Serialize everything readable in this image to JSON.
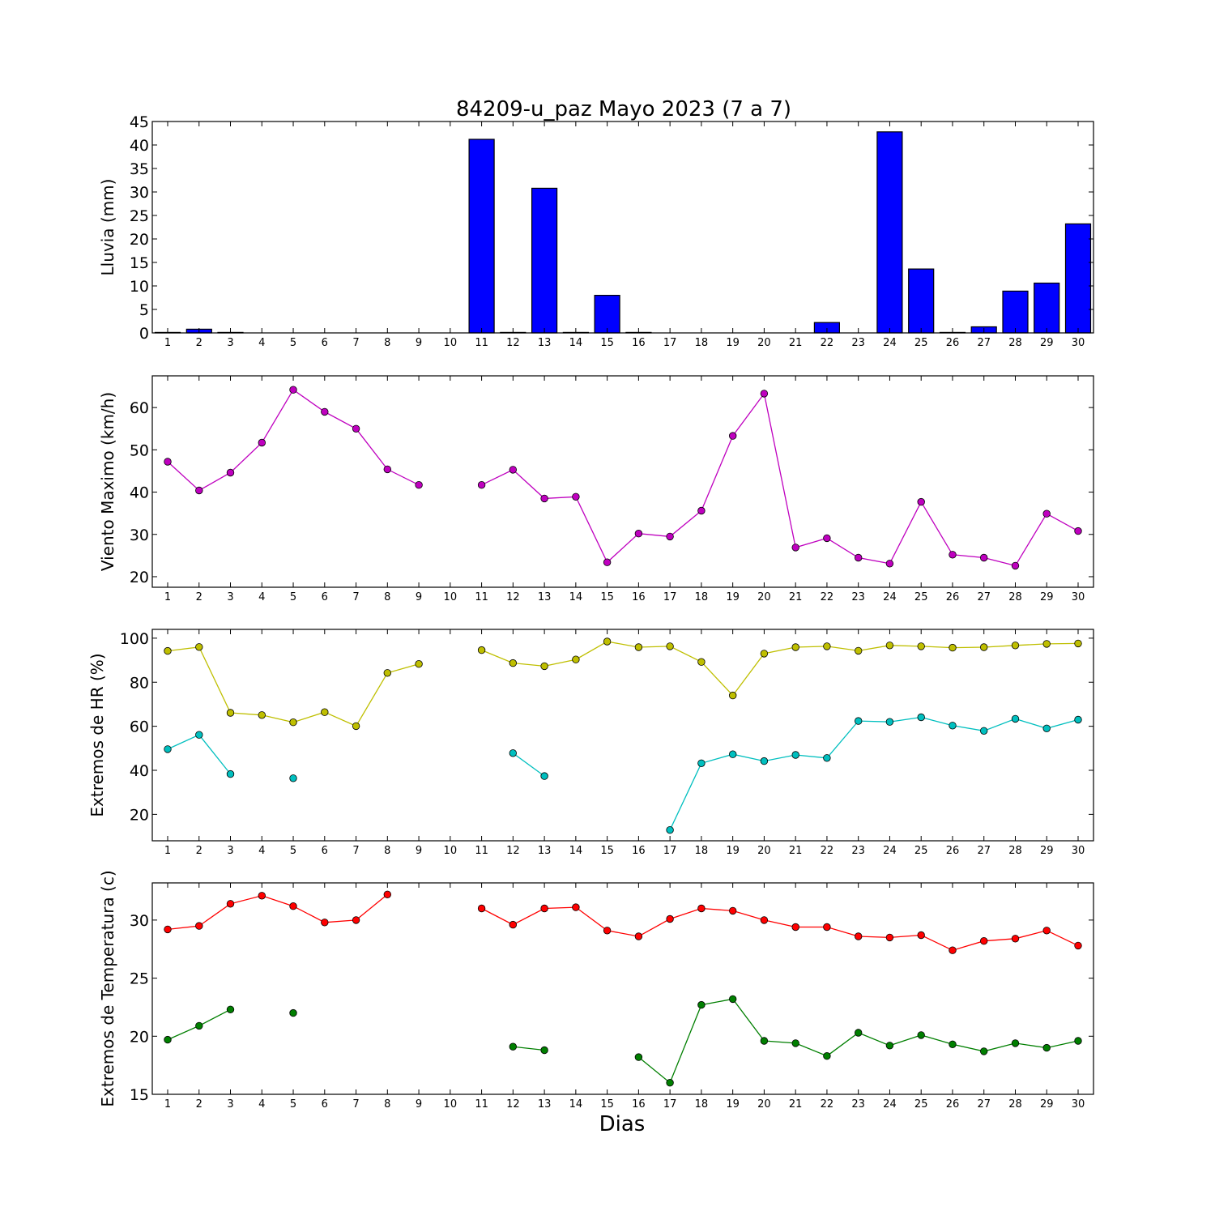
{
  "chart_data": {
    "title": "84209-u_paz Mayo 2023  (7 a 7)",
    "xlabel": "Dias",
    "x": [
      1,
      2,
      3,
      4,
      5,
      6,
      7,
      8,
      9,
      10,
      11,
      12,
      13,
      14,
      15,
      16,
      17,
      18,
      19,
      20,
      21,
      22,
      23,
      24,
      25,
      26,
      27,
      28,
      29,
      30
    ],
    "x_tick_labels": [
      "1",
      "2",
      "3",
      "4",
      "5",
      "6",
      "7",
      "8",
      "9",
      "10",
      "11",
      "12",
      "13",
      "14",
      "15",
      "16",
      "17",
      "18",
      "19",
      "20",
      "21",
      "22",
      "23",
      "24",
      "25",
      "26",
      "27",
      "28",
      "29",
      "30"
    ],
    "panels": [
      {
        "type": "bar",
        "ylabel": "Lluvia (mm)",
        "ylim": [
          0,
          45
        ],
        "yticks": [
          0,
          5,
          10,
          15,
          20,
          25,
          30,
          35,
          40,
          45
        ],
        "series": [
          {
            "color": "#0000ff",
            "values": [
              0.1,
              0.8,
              0.1,
              0,
              0,
              0,
              0,
              0,
              0,
              0,
              41.2,
              0.1,
              30.8,
              0.1,
              8.0,
              0.1,
              0,
              0,
              0,
              0,
              0,
              2.2,
              0,
              42.8,
              13.6,
              0.1,
              1.3,
              8.9,
              10.6,
              23.2
            ]
          }
        ]
      },
      {
        "type": "line",
        "ylabel": "Viento Maximo (km/h)",
        "ylim": [
          17.5,
          67.5
        ],
        "yticks": [
          20,
          30,
          40,
          50,
          60
        ],
        "series": [
          {
            "color": "#bf00bf",
            "values": [
              47.2,
              40.4,
              44.6,
              51.7,
              64.2,
              59.0,
              55.0,
              45.4,
              41.7,
              null,
              41.7,
              45.3,
              38.5,
              38.9,
              23.4,
              30.2,
              29.5,
              35.6,
              53.3,
              63.3,
              26.9,
              29.1,
              24.5,
              23.1,
              37.7,
              25.2,
              24.5,
              22.6,
              34.9,
              30.8
            ]
          }
        ]
      },
      {
        "type": "line",
        "ylabel": "Extremos de HR (%)",
        "ylim": [
          8,
          104
        ],
        "yticks": [
          20,
          40,
          60,
          80,
          100
        ],
        "series": [
          {
            "color": "#bfbf00",
            "values": [
              94.2,
              96.0,
              66.1,
              65.1,
              61.8,
              66.4,
              60.1,
              84.2,
              88.3,
              null,
              94.6,
              88.7,
              87.3,
              90.3,
              98.5,
              95.9,
              96.3,
              89.2,
              74.0,
              93.0,
              95.9,
              96.3,
              94.3,
              96.7,
              96.3,
              95.7,
              95.9,
              96.7,
              97.4,
              97.6
            ]
          },
          {
            "color": "#00bfbf",
            "values": [
              49.6,
              56.1,
              38.3,
              null,
              36.4,
              null,
              null,
              null,
              null,
              null,
              null,
              47.8,
              37.4,
              null,
              null,
              null,
              12.9,
              43.2,
              47.3,
              44.2,
              47.0,
              45.6,
              62.4,
              62.0,
              64.1,
              60.3,
              57.9,
              63.4,
              59.0,
              63.0
            ]
          }
        ]
      },
      {
        "type": "line",
        "ylabel": "Extremos de Temperatura (c)",
        "ylim": [
          15,
          33.2
        ],
        "yticks": [
          15,
          20,
          25,
          30
        ],
        "series": [
          {
            "color": "#ff0000",
            "values": [
              29.2,
              29.5,
              31.4,
              32.1,
              31.2,
              29.8,
              30.0,
              32.2,
              null,
              null,
              31.0,
              29.6,
              31.0,
              31.1,
              29.1,
              28.6,
              30.1,
              31.0,
              30.8,
              30.0,
              29.4,
              29.4,
              28.6,
              28.5,
              28.7,
              27.4,
              28.2,
              28.4,
              29.1,
              27.8
            ]
          },
          {
            "color": "#007f00",
            "values": [
              19.7,
              20.9,
              22.3,
              null,
              22.0,
              null,
              null,
              null,
              null,
              null,
              null,
              19.1,
              18.8,
              null,
              null,
              18.2,
              16.0,
              22.7,
              23.2,
              19.6,
              19.4,
              18.3,
              20.3,
              19.2,
              20.1,
              19.3,
              18.7,
              19.4,
              19.0,
              19.6
            ]
          }
        ]
      }
    ]
  }
}
